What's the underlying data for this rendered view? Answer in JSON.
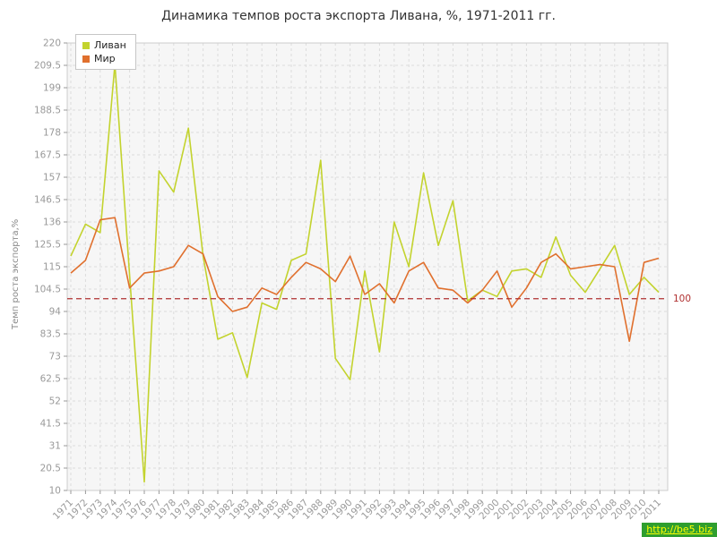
{
  "watermark": {
    "text": "http://be5.biz",
    "bg": "#2f9e2f",
    "color": "#ffff00"
  },
  "chart_data": {
    "type": "line",
    "title": "Динамика темпов роста экспорта Ливана, %, 1971-2011 гг.",
    "xlabel": "",
    "ylabel": "Темп роста экспорта,%",
    "ylim": [
      10,
      220
    ],
    "yticks": [
      10,
      20.5,
      31,
      41.5,
      52,
      62.5,
      73,
      83.5,
      94,
      104.5,
      115,
      125.5,
      136,
      146.5,
      157,
      167.5,
      178,
      188.5,
      199,
      209.5,
      220
    ],
    "grid": true,
    "legend_position": "top-left",
    "reference_line": {
      "value": 100,
      "label": "100",
      "color": "#b03030",
      "style": "dashed"
    },
    "categories": [
      "1971",
      "1972",
      "1973",
      "1974",
      "1975",
      "1976",
      "1977",
      "1978",
      "1979",
      "1980",
      "1981",
      "1982",
      "1983",
      "1984",
      "1985",
      "1986",
      "1987",
      "1988",
      "1989",
      "1990",
      "1991",
      "1992",
      "1993",
      "1994",
      "1995",
      "1996",
      "1997",
      "1998",
      "1999",
      "2000",
      "2001",
      "2002",
      "2003",
      "2004",
      "2005",
      "2006",
      "2007",
      "2008",
      "2009",
      "2010",
      "2011"
    ],
    "series": [
      {
        "name": "Ливан",
        "color": "#c3d32e",
        "values": [
          120,
          135,
          131,
          210,
          111,
          14,
          160,
          150,
          180,
          120,
          81,
          84,
          63,
          98,
          95,
          118,
          121,
          165,
          72,
          62,
          113,
          75,
          136,
          115,
          159,
          125,
          146,
          99,
          104,
          101,
          113,
          114,
          110,
          129,
          111,
          103,
          114,
          125,
          102,
          110,
          103
        ]
      },
      {
        "name": "Мир",
        "color": "#e0702e",
        "values": [
          112,
          118,
          137,
          138,
          105,
          112,
          113,
          115,
          125,
          121,
          101,
          94,
          96,
          105,
          102,
          110,
          117,
          114,
          108,
          120,
          102,
          107,
          98,
          113,
          117,
          105,
          104,
          98,
          104,
          113,
          96,
          105,
          117,
          121,
          114,
          115,
          116,
          115,
          80,
          117,
          119
        ]
      }
    ]
  }
}
